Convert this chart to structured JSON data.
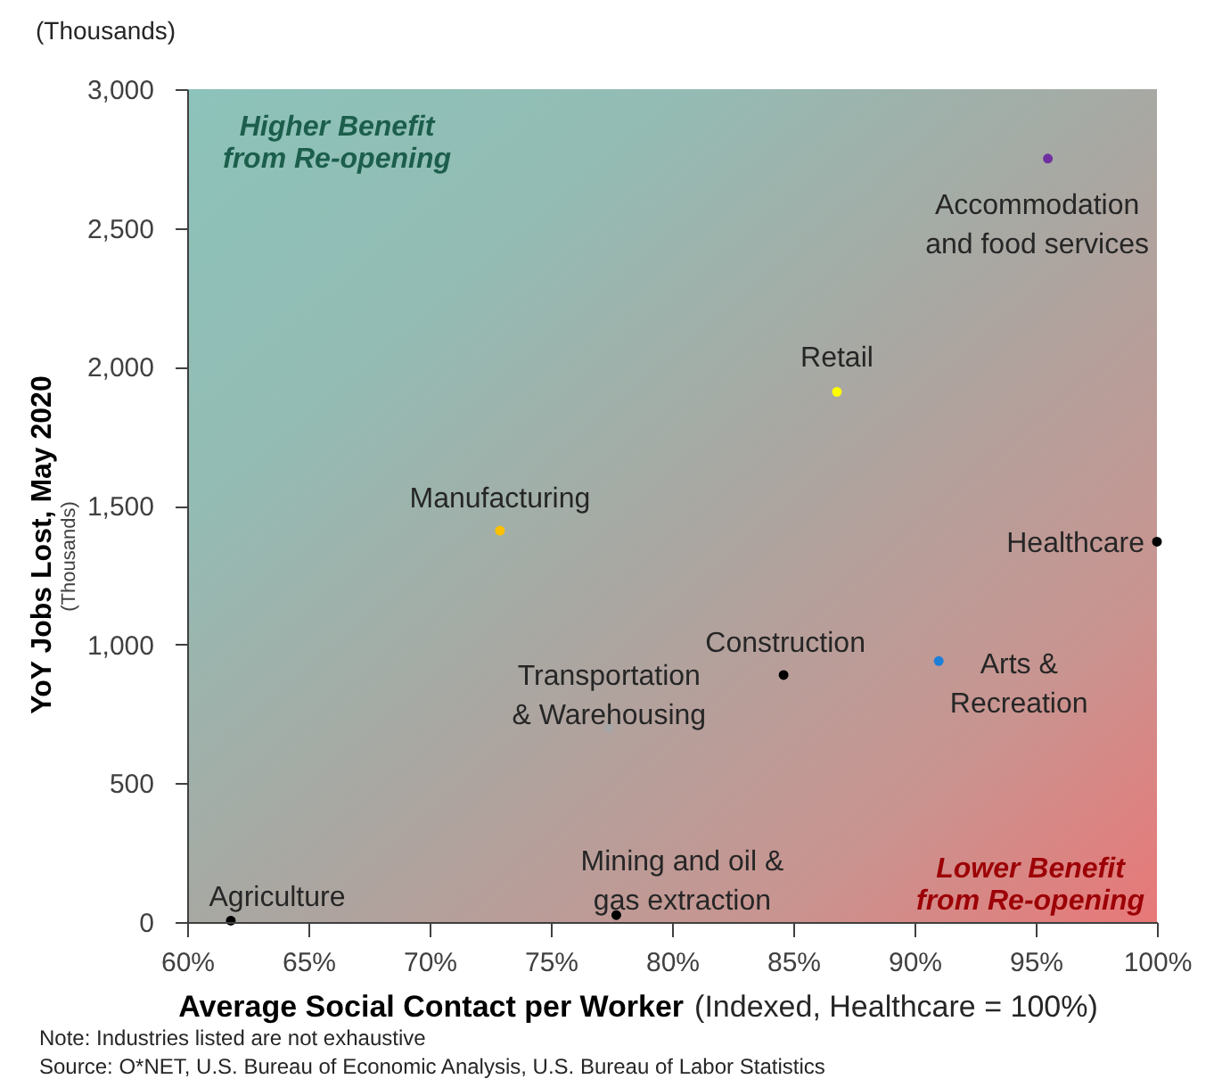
{
  "chart_data": {
    "type": "scatter",
    "xlabel": "Average Social Contact per Worker (Indexed, Healthcare = 100%)",
    "ylabel": "YoY Jobs Lost, May 2020",
    "annotations": [
      "Higher Benefit from Re-opening",
      "Lower Benefit from Re-opening",
      "(Thousands)",
      "(Thousands)",
      "Note: Industries listed are not exhaustive",
      "Source: O*NET, U.S. Bureau of Economic Analysis, U.S. Bureau of Labor Statistics"
    ],
    "series": [
      {
        "name": "Accommodation and food services",
        "color": "#7030a0",
        "x": [
          95.5
        ],
        "values": [
          2750
        ]
      },
      {
        "name": "Retail",
        "color": "#ffff00",
        "x": [
          86.8
        ],
        "values": [
          1910
        ]
      },
      {
        "name": "Manufacturing",
        "color": "#ffc000",
        "x": [
          72.9
        ],
        "values": [
          1410
        ]
      },
      {
        "name": "Healthcare",
        "color": "#000000",
        "x": [
          100
        ],
        "values": [
          1370
        ]
      },
      {
        "name": "Transportation & Warehousing",
        "color": "#a6a6a6",
        "x": [
          77.4
        ],
        "values": [
          700
        ]
      },
      {
        "name": "Construction",
        "color": "#000000",
        "x": [
          84.6
        ],
        "values": [
          890
        ]
      },
      {
        "name": "Arts & Recreation",
        "color": "#1e7fd8",
        "x": [
          91
        ],
        "values": [
          940
        ]
      },
      {
        "name": "Mining and oil & gas extraction",
        "color": "#000000",
        "x": [
          77.7
        ],
        "values": [
          25
        ]
      },
      {
        "name": "Agriculture",
        "color": "#000000",
        "x": [
          61.8
        ],
        "values": [
          5
        ]
      }
    ],
    "xlim": [
      60,
      100
    ],
    "xticks": [
      {
        "value": 60,
        "label": "60%"
      },
      {
        "value": 65,
        "label": "65%"
      },
      {
        "value": 70,
        "label": "70%"
      },
      {
        "value": 75,
        "label": "75%"
      },
      {
        "value": 80,
        "label": "80%"
      },
      {
        "value": 85,
        "label": "85%"
      },
      {
        "value": 90,
        "label": "90%"
      },
      {
        "value": 95,
        "label": "95%"
      },
      {
        "value": 100,
        "label": "100%"
      }
    ],
    "ylim": [
      0,
      3000
    ],
    "yticks": [
      0,
      500,
      {
        "value": 1000,
        "label": "1,000"
      },
      {
        "value": 1500,
        "label": "1,500"
      },
      {
        "value": 2000,
        "label": "2,000"
      },
      {
        "value": 2500,
        "label": "2,500"
      },
      {
        "value": 3000,
        "label": "3,000"
      }
    ],
    "grid": false,
    "marker": "circle"
  }
}
